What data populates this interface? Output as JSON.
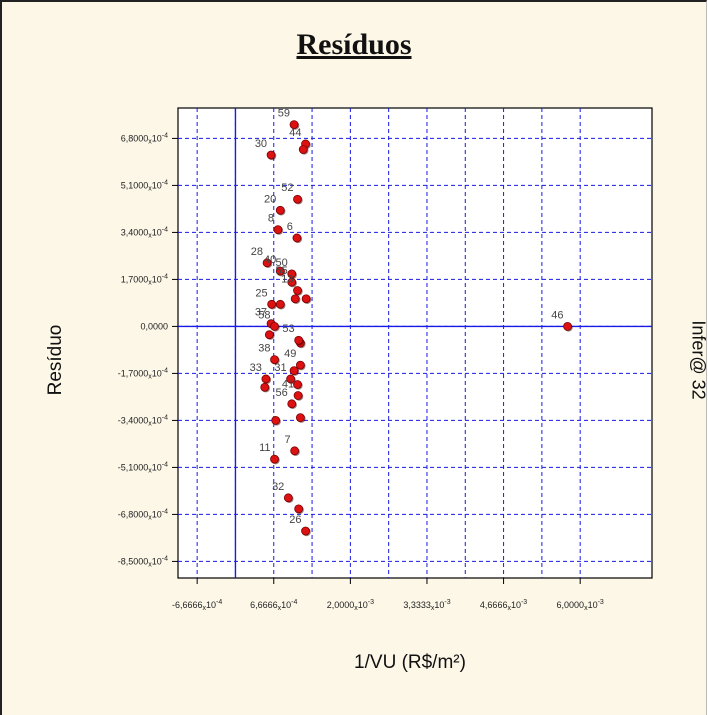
{
  "chart_data": {
    "type": "scatter",
    "title": "Resíduos",
    "xlabel": "1/VU (R$/m²)",
    "ylabel": "Resíduo",
    "watermark": "Infer@ 32",
    "grid": true,
    "xlim": [
      -0.001,
      0.00725
    ],
    "ylim": [
      -0.00091,
      0.00079
    ],
    "x_ticks": [
      {
        "value": -0.00066666,
        "label": "-6,6666x10^-4"
      },
      {
        "value": 0.00066666,
        "label": "6,6666x10^-4"
      },
      {
        "value": 0.002,
        "label": "2,0000x10^-3"
      },
      {
        "value": 0.0033333,
        "label": "3,3333x10^-3"
      },
      {
        "value": 0.0046666,
        "label": "4,6666x10^-3"
      },
      {
        "value": 0.006,
        "label": "6,0000x10^-3"
      }
    ],
    "y_ticks": [
      {
        "value": 0.00068,
        "label": "6,8000x10^-4"
      },
      {
        "value": 0.00051,
        "label": "5,1000x10^-4"
      },
      {
        "value": 0.00034,
        "label": "3,4000x10^-4"
      },
      {
        "value": 0.00017,
        "label": "1,7000x10^-4"
      },
      {
        "value": 0,
        "label": "0,0000"
      },
      {
        "value": -0.00017,
        "label": "-1,7000x10^-4"
      },
      {
        "value": -0.00034,
        "label": "-3,4000x10^-4"
      },
      {
        "value": -0.00051,
        "label": "-5,1000x10^-4"
      },
      {
        "value": -0.00068,
        "label": "-6,8000x10^-4"
      },
      {
        "value": -0.00085,
        "label": "-8,5000x10^-4"
      }
    ],
    "points": [
      {
        "label": "59",
        "x": 0.00102,
        "y": 0.00073
      },
      {
        "label": "44",
        "x": 0.00122,
        "y": 0.00066
      },
      {
        "label": "",
        "x": 0.00118,
        "y": 0.00064
      },
      {
        "label": "30",
        "x": 0.00062,
        "y": 0.00062
      },
      {
        "label": "52",
        "x": 0.00108,
        "y": 0.00046
      },
      {
        "label": "20",
        "x": 0.00078,
        "y": 0.00042
      },
      {
        "label": "8",
        "x": 0.00074,
        "y": 0.00035
      },
      {
        "label": "6",
        "x": 0.00107,
        "y": 0.00032
      },
      {
        "label": "28",
        "x": 0.00055,
        "y": 0.00023
      },
      {
        "label": "40",
        "x": 0.00078,
        "y": 0.0002
      },
      {
        "label": "50",
        "x": 0.00098,
        "y": 0.00019
      },
      {
        "label": "55",
        "x": 0.00098,
        "y": 0.00016
      },
      {
        "label": "13",
        "x": 0.00108,
        "y": 0.00013
      },
      {
        "label": "",
        "x": 0.00123,
        "y": 0.0001
      },
      {
        "label": "",
        "x": 0.00104,
        "y": 0.0001
      },
      {
        "label": "",
        "x": 0.00078,
        "y": 8e-05
      },
      {
        "label": "25",
        "x": 0.00063,
        "y": 8e-05
      },
      {
        "label": "37",
        "x": 0.00062,
        "y": 1e-05
      },
      {
        "label": "58",
        "x": 0.00068,
        "y": 0.0
      },
      {
        "label": "46",
        "x": 0.00578,
        "y": 0.0
      },
      {
        "label": "",
        "x": 0.00059,
        "y": -3e-05
      },
      {
        "label": "",
        "x": 0.00113,
        "y": -6e-05
      },
      {
        "label": "53",
        "x": 0.0011,
        "y": -5e-05
      },
      {
        "label": "38",
        "x": 0.00068,
        "y": -0.00012
      },
      {
        "label": "49",
        "x": 0.00113,
        "y": -0.00014
      },
      {
        "label": "",
        "x": 0.00102,
        "y": -0.00016
      },
      {
        "label": "33",
        "x": 0.00053,
        "y": -0.00019
      },
      {
        "label": "31",
        "x": 0.00096,
        "y": -0.00019
      },
      {
        "label": "",
        "x": 0.00108,
        "y": -0.00021
      },
      {
        "label": "",
        "x": 0.00051,
        "y": -0.00022
      },
      {
        "label": "41",
        "x": 0.00109,
        "y": -0.00025
      },
      {
        "label": "56",
        "x": 0.00098,
        "y": -0.00028
      },
      {
        "label": "",
        "x": 0.00113,
        "y": -0.00033
      },
      {
        "label": "",
        "x": 0.0007,
        "y": -0.00034
      },
      {
        "label": "7",
        "x": 0.00103,
        "y": -0.00045
      },
      {
        "label": "11",
        "x": 0.00068,
        "y": -0.00048
      },
      {
        "label": "32",
        "x": 0.00092,
        "y": -0.00062
      },
      {
        "label": "",
        "x": 0.0011,
        "y": -0.00066
      },
      {
        "label": "26",
        "x": 0.00122,
        "y": -0.00074
      }
    ],
    "colors": {
      "points": "#dd1111",
      "grid": "#1a1ae6",
      "axis": "#1a1ae6"
    }
  }
}
